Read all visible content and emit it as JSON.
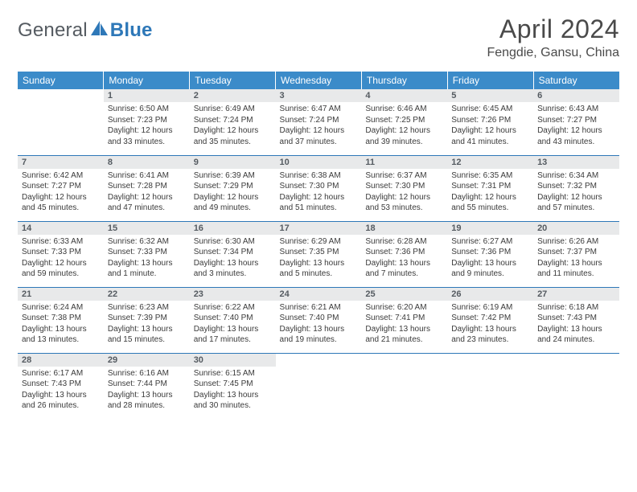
{
  "brand": {
    "part1": "General",
    "part2": "Blue"
  },
  "title": "April 2024",
  "location": "Fengdie, Gansu, China",
  "colors": {
    "header_bg": "#3b8bc9",
    "header_text": "#ffffff",
    "daynum_bg": "#e8e9ea",
    "rule": "#2e78b8",
    "body_text": "#3a3a3a",
    "logo_gray": "#555b61",
    "logo_blue": "#2e78b8",
    "page_bg": "#ffffff"
  },
  "typography": {
    "title_fontsize": 32,
    "location_fontsize": 16,
    "weekday_fontsize": 12,
    "daynum_fontsize": 11,
    "body_fontsize": 10
  },
  "weekdays": [
    "Sunday",
    "Monday",
    "Tuesday",
    "Wednesday",
    "Thursday",
    "Friday",
    "Saturday"
  ],
  "weeks": [
    [
      {
        "n": "",
        "sr": "",
        "ss": "",
        "dl1": "",
        "dl2": "",
        "empty": true
      },
      {
        "n": "1",
        "sr": "Sunrise: 6:50 AM",
        "ss": "Sunset: 7:23 PM",
        "dl1": "Daylight: 12 hours",
        "dl2": "and 33 minutes."
      },
      {
        "n": "2",
        "sr": "Sunrise: 6:49 AM",
        "ss": "Sunset: 7:24 PM",
        "dl1": "Daylight: 12 hours",
        "dl2": "and 35 minutes."
      },
      {
        "n": "3",
        "sr": "Sunrise: 6:47 AM",
        "ss": "Sunset: 7:24 PM",
        "dl1": "Daylight: 12 hours",
        "dl2": "and 37 minutes."
      },
      {
        "n": "4",
        "sr": "Sunrise: 6:46 AM",
        "ss": "Sunset: 7:25 PM",
        "dl1": "Daylight: 12 hours",
        "dl2": "and 39 minutes."
      },
      {
        "n": "5",
        "sr": "Sunrise: 6:45 AM",
        "ss": "Sunset: 7:26 PM",
        "dl1": "Daylight: 12 hours",
        "dl2": "and 41 minutes."
      },
      {
        "n": "6",
        "sr": "Sunrise: 6:43 AM",
        "ss": "Sunset: 7:27 PM",
        "dl1": "Daylight: 12 hours",
        "dl2": "and 43 minutes."
      }
    ],
    [
      {
        "n": "7",
        "sr": "Sunrise: 6:42 AM",
        "ss": "Sunset: 7:27 PM",
        "dl1": "Daylight: 12 hours",
        "dl2": "and 45 minutes."
      },
      {
        "n": "8",
        "sr": "Sunrise: 6:41 AM",
        "ss": "Sunset: 7:28 PM",
        "dl1": "Daylight: 12 hours",
        "dl2": "and 47 minutes."
      },
      {
        "n": "9",
        "sr": "Sunrise: 6:39 AM",
        "ss": "Sunset: 7:29 PM",
        "dl1": "Daylight: 12 hours",
        "dl2": "and 49 minutes."
      },
      {
        "n": "10",
        "sr": "Sunrise: 6:38 AM",
        "ss": "Sunset: 7:30 PM",
        "dl1": "Daylight: 12 hours",
        "dl2": "and 51 minutes."
      },
      {
        "n": "11",
        "sr": "Sunrise: 6:37 AM",
        "ss": "Sunset: 7:30 PM",
        "dl1": "Daylight: 12 hours",
        "dl2": "and 53 minutes."
      },
      {
        "n": "12",
        "sr": "Sunrise: 6:35 AM",
        "ss": "Sunset: 7:31 PM",
        "dl1": "Daylight: 12 hours",
        "dl2": "and 55 minutes."
      },
      {
        "n": "13",
        "sr": "Sunrise: 6:34 AM",
        "ss": "Sunset: 7:32 PM",
        "dl1": "Daylight: 12 hours",
        "dl2": "and 57 minutes."
      }
    ],
    [
      {
        "n": "14",
        "sr": "Sunrise: 6:33 AM",
        "ss": "Sunset: 7:33 PM",
        "dl1": "Daylight: 12 hours",
        "dl2": "and 59 minutes."
      },
      {
        "n": "15",
        "sr": "Sunrise: 6:32 AM",
        "ss": "Sunset: 7:33 PM",
        "dl1": "Daylight: 13 hours",
        "dl2": "and 1 minute."
      },
      {
        "n": "16",
        "sr": "Sunrise: 6:30 AM",
        "ss": "Sunset: 7:34 PM",
        "dl1": "Daylight: 13 hours",
        "dl2": "and 3 minutes."
      },
      {
        "n": "17",
        "sr": "Sunrise: 6:29 AM",
        "ss": "Sunset: 7:35 PM",
        "dl1": "Daylight: 13 hours",
        "dl2": "and 5 minutes."
      },
      {
        "n": "18",
        "sr": "Sunrise: 6:28 AM",
        "ss": "Sunset: 7:36 PM",
        "dl1": "Daylight: 13 hours",
        "dl2": "and 7 minutes."
      },
      {
        "n": "19",
        "sr": "Sunrise: 6:27 AM",
        "ss": "Sunset: 7:36 PM",
        "dl1": "Daylight: 13 hours",
        "dl2": "and 9 minutes."
      },
      {
        "n": "20",
        "sr": "Sunrise: 6:26 AM",
        "ss": "Sunset: 7:37 PM",
        "dl1": "Daylight: 13 hours",
        "dl2": "and 11 minutes."
      }
    ],
    [
      {
        "n": "21",
        "sr": "Sunrise: 6:24 AM",
        "ss": "Sunset: 7:38 PM",
        "dl1": "Daylight: 13 hours",
        "dl2": "and 13 minutes."
      },
      {
        "n": "22",
        "sr": "Sunrise: 6:23 AM",
        "ss": "Sunset: 7:39 PM",
        "dl1": "Daylight: 13 hours",
        "dl2": "and 15 minutes."
      },
      {
        "n": "23",
        "sr": "Sunrise: 6:22 AM",
        "ss": "Sunset: 7:40 PM",
        "dl1": "Daylight: 13 hours",
        "dl2": "and 17 minutes."
      },
      {
        "n": "24",
        "sr": "Sunrise: 6:21 AM",
        "ss": "Sunset: 7:40 PM",
        "dl1": "Daylight: 13 hours",
        "dl2": "and 19 minutes."
      },
      {
        "n": "25",
        "sr": "Sunrise: 6:20 AM",
        "ss": "Sunset: 7:41 PM",
        "dl1": "Daylight: 13 hours",
        "dl2": "and 21 minutes."
      },
      {
        "n": "26",
        "sr": "Sunrise: 6:19 AM",
        "ss": "Sunset: 7:42 PM",
        "dl1": "Daylight: 13 hours",
        "dl2": "and 23 minutes."
      },
      {
        "n": "27",
        "sr": "Sunrise: 6:18 AM",
        "ss": "Sunset: 7:43 PM",
        "dl1": "Daylight: 13 hours",
        "dl2": "and 24 minutes."
      }
    ],
    [
      {
        "n": "28",
        "sr": "Sunrise: 6:17 AM",
        "ss": "Sunset: 7:43 PM",
        "dl1": "Daylight: 13 hours",
        "dl2": "and 26 minutes."
      },
      {
        "n": "29",
        "sr": "Sunrise: 6:16 AM",
        "ss": "Sunset: 7:44 PM",
        "dl1": "Daylight: 13 hours",
        "dl2": "and 28 minutes."
      },
      {
        "n": "30",
        "sr": "Sunrise: 6:15 AM",
        "ss": "Sunset: 7:45 PM",
        "dl1": "Daylight: 13 hours",
        "dl2": "and 30 minutes."
      },
      {
        "n": "",
        "sr": "",
        "ss": "",
        "dl1": "",
        "dl2": "",
        "empty": true
      },
      {
        "n": "",
        "sr": "",
        "ss": "",
        "dl1": "",
        "dl2": "",
        "empty": true
      },
      {
        "n": "",
        "sr": "",
        "ss": "",
        "dl1": "",
        "dl2": "",
        "empty": true
      },
      {
        "n": "",
        "sr": "",
        "ss": "",
        "dl1": "",
        "dl2": "",
        "empty": true
      }
    ]
  ]
}
